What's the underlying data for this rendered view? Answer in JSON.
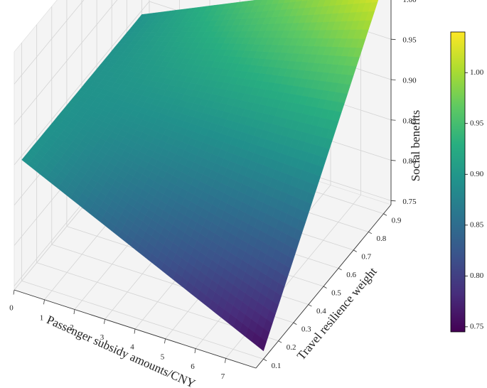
{
  "chart_data": {
    "type": "surface3d",
    "xlabel": "Passenger subsidy amounts/CNY",
    "ylabel": "Travel resilience weight",
    "zlabel": "Social benefits",
    "x_ticks": [
      "0",
      "1",
      "2",
      "3",
      "4",
      "5",
      "6",
      "7"
    ],
    "y_ticks": [
      "0.1",
      "0.2",
      "0.3",
      "0.4",
      "0.5",
      "0.6",
      "0.7",
      "0.8",
      "0.9"
    ],
    "z_ticks": [
      "0.75",
      "0.80",
      "0.85",
      "0.90",
      "0.95",
      "1.00"
    ],
    "xlim": [
      0,
      8
    ],
    "ylim": [
      0.05,
      0.95
    ],
    "zlim": [
      0.745,
      1.04
    ],
    "colormap": "viridis",
    "colorbar": {
      "range": [
        0.745,
        1.04
      ],
      "ticks": [
        "0.75",
        "0.80",
        "0.85",
        "0.90",
        "0.95",
        "1.00"
      ]
    },
    "grid": true,
    "surface_corners": [
      {
        "x": 0,
        "y": 0.1,
        "z": 0.895
      },
      {
        "x": 8,
        "y": 0.1,
        "z": 0.755
      },
      {
        "x": 0,
        "y": 0.9,
        "z": 0.895
      },
      {
        "x": 8,
        "y": 0.9,
        "z": 1.03
      }
    ]
  }
}
